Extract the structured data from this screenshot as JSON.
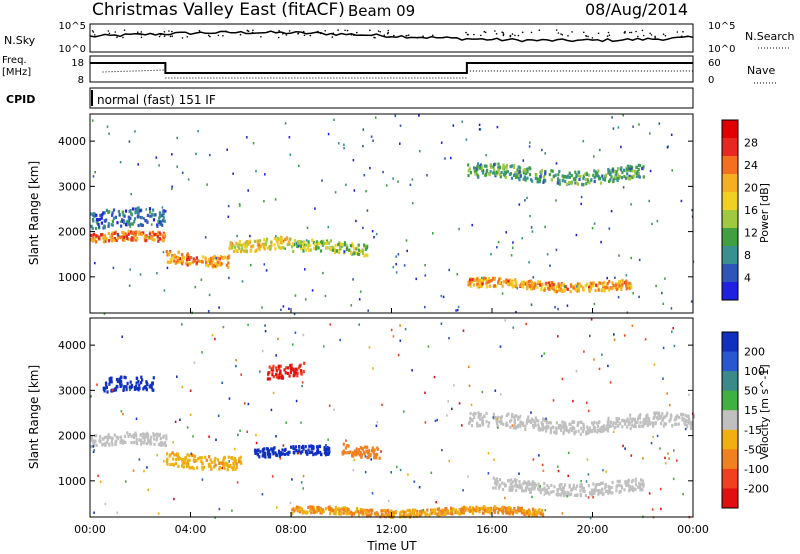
{
  "header": {
    "title": "Christmas Valley East (fitACF)",
    "beam": "Beam 09",
    "date": "08/Aug/2014"
  },
  "strip_panels": {
    "noise": {
      "left_label": "N.Sky",
      "left_ticks": [
        "10^5",
        "10^0"
      ],
      "right_label": "N.Search",
      "right_ticks": [
        "10^5",
        "10^0"
      ]
    },
    "freq": {
      "left_label_top": "Freq.",
      "left_label_bottom": "[MHz]",
      "left_ticks": [
        "18",
        "8"
      ],
      "right_label": "Nave",
      "right_ticks": [
        "60",
        "0"
      ]
    },
    "cpid": {
      "label": "CPID",
      "text": "normal (fast) 151 IF"
    }
  },
  "colorbars": {
    "power": {
      "title": "Power [dB]",
      "ticks": [
        "28",
        "24",
        "20",
        "16",
        "12",
        "8",
        "4"
      ],
      "colors": [
        "#2020e0",
        "#2f55b8",
        "#3a9090",
        "#40a040",
        "#a0c840",
        "#f0d020",
        "#f4b020",
        "#f47020",
        "#e82820",
        "#e00000"
      ]
    },
    "velocity": {
      "title": "Velocity [m s^-1]",
      "ticks": [
        "200",
        "100",
        "50",
        "15",
        "-15",
        "-50",
        "-100",
        "-200"
      ],
      "colors": [
        "#1030c0",
        "#2858d0",
        "#3a8a8a",
        "#40b040",
        "#c0c0c0",
        "#f0b010",
        "#f08020",
        "#f04020",
        "#e01010"
      ]
    }
  },
  "chart_data": [
    {
      "type": "heatmap",
      "name": "power",
      "ylabel": "Slant Range [km]",
      "xlabel": "Time UT",
      "x_ticks": [
        "00:00",
        "04:00",
        "08:00",
        "12:00",
        "16:00",
        "20:00",
        "00:00"
      ],
      "x_range_hours": [
        0,
        24
      ],
      "y_range_km": [
        200,
        4600
      ],
      "y_ticks": [
        "1000",
        "2000",
        "3000",
        "4000"
      ],
      "grid": false,
      "features": [
        {
          "t0": 0.0,
          "t1": 3.0,
          "r_center": 1880,
          "r_width": 200,
          "power_db": 28
        },
        {
          "t0": 0.0,
          "t1": 3.0,
          "r_center": 2250,
          "r_width": 400,
          "power_db": 10
        },
        {
          "t0": 3.0,
          "t1": 5.5,
          "r_center": 1450,
          "r_width": 260,
          "power_db": 26
        },
        {
          "t0": 5.5,
          "t1": 8.0,
          "r_center": 1750,
          "r_width": 250,
          "power_db": 22
        },
        {
          "t0": 8.0,
          "t1": 11.0,
          "r_center": 1650,
          "r_width": 250,
          "power_db": 18
        },
        {
          "t0": 15.0,
          "t1": 21.5,
          "r_center": 850,
          "r_width": 200,
          "power_db": 26
        },
        {
          "t0": 15.0,
          "t1": 22.0,
          "r_center": 3300,
          "r_width": 300,
          "power_db": 14
        }
      ]
    },
    {
      "type": "heatmap",
      "name": "velocity",
      "ylabel": "Slant Range [km]",
      "xlabel": "Time UT",
      "x_ticks": [
        "00:00",
        "04:00",
        "08:00",
        "12:00",
        "16:00",
        "20:00",
        "00:00"
      ],
      "x_range_hours": [
        0,
        24
      ],
      "y_range_km": [
        200,
        4600
      ],
      "y_ticks": [
        "1000",
        "2000",
        "3000",
        "4000"
      ],
      "grid": false,
      "features": [
        {
          "t0": 0.0,
          "t1": 3.0,
          "r_center": 1900,
          "r_width": 250,
          "velocity_ms": 0
        },
        {
          "t0": 0.5,
          "t1": 2.5,
          "r_center": 3100,
          "r_width": 300,
          "velocity_ms": 200
        },
        {
          "t0": 3.0,
          "t1": 6.0,
          "r_center": 1500,
          "r_width": 300,
          "velocity_ms": -40
        },
        {
          "t0": 6.5,
          "t1": 9.5,
          "r_center": 1650,
          "r_width": 200,
          "velocity_ms": 200
        },
        {
          "t0": 7.0,
          "t1": 8.5,
          "r_center": 3400,
          "r_width": 300,
          "velocity_ms": -200
        },
        {
          "t0": 10.0,
          "t1": 11.5,
          "r_center": 1700,
          "r_width": 250,
          "velocity_ms": -80
        },
        {
          "t0": 15.0,
          "t1": 24.0,
          "r_center": 2300,
          "r_width": 300,
          "velocity_ms": 0
        },
        {
          "t0": 16.0,
          "t1": 22.0,
          "r_center": 900,
          "r_width": 250,
          "velocity_ms": 0
        },
        {
          "t0": 8.0,
          "t1": 18.0,
          "r_center": 350,
          "r_width": 150,
          "velocity_ms": -50
        }
      ]
    }
  ]
}
